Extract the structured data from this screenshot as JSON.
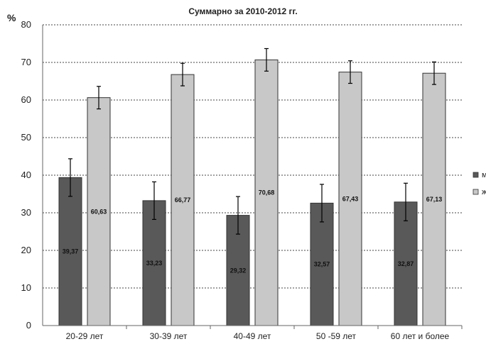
{
  "chart_data": {
    "type": "bar",
    "title": "Суммарно за 2010-2012 гг.",
    "ylabel": "%",
    "xlabel": "",
    "ylim": [
      0,
      80
    ],
    "yticks": [
      0,
      10,
      20,
      30,
      40,
      50,
      60,
      70,
      80
    ],
    "grid": true,
    "legend_position": "right",
    "categories": [
      "20-29 лет",
      "30-39 лет",
      "40-49 лет",
      "50 -59 лет",
      "60 лет и более"
    ],
    "series": [
      {
        "name": "м",
        "color": "#595959",
        "values": [
          39.37,
          33.23,
          29.32,
          32.57,
          32.87
        ],
        "labels": [
          "39,37",
          "33,23",
          "29,32",
          "32,57",
          "32,87"
        ],
        "error": [
          5.0,
          5.0,
          5.0,
          5.0,
          5.0
        ]
      },
      {
        "name": "ж",
        "color": "#c8c8c8",
        "values": [
          60.63,
          66.77,
          70.68,
          67.43,
          67.13
        ],
        "labels": [
          "60,63",
          "66,77",
          "70,68",
          "67,43",
          "67,13"
        ],
        "error": [
          3.0,
          3.0,
          3.0,
          3.0,
          3.0
        ]
      }
    ]
  }
}
